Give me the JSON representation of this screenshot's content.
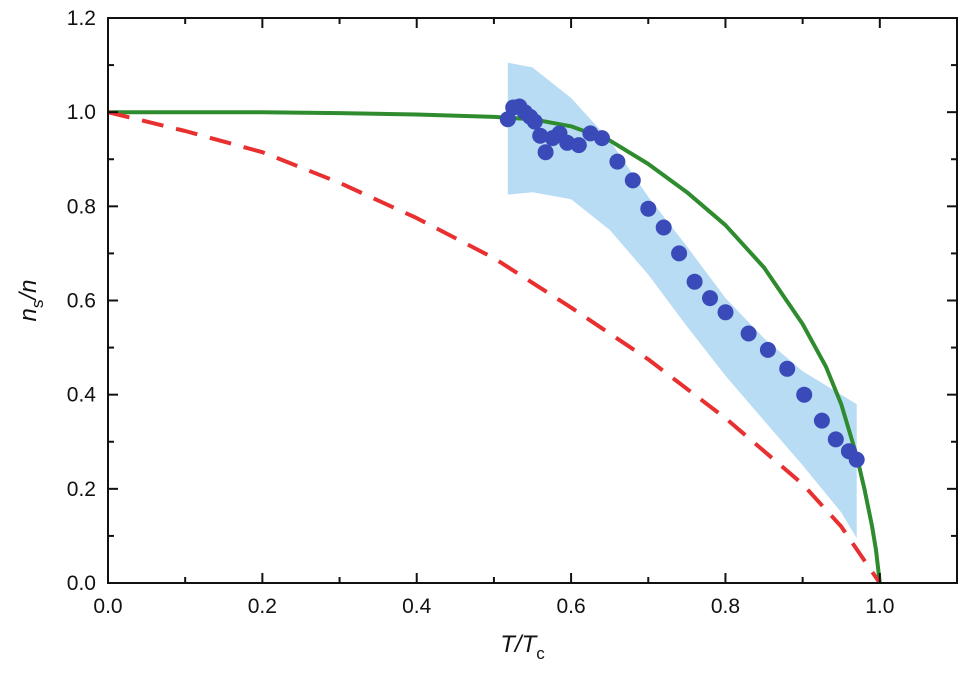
{
  "chart_data": {
    "type": "line",
    "xlabel": {
      "main": "T/T",
      "sub": "c"
    },
    "ylabel": {
      "pre": "n",
      "sub": "s",
      "post": "/n"
    },
    "xlim": [
      0.0,
      1.1
    ],
    "ylim": [
      0.0,
      1.2
    ],
    "xticks": [
      "0.0",
      "0.2",
      "0.4",
      "0.6",
      "0.8",
      "1.0"
    ],
    "yticks": [
      "0.0",
      "0.2",
      "0.4",
      "0.6",
      "0.8",
      "1.0",
      "1.2"
    ],
    "xtick_values": [
      0.0,
      0.2,
      0.4,
      0.6,
      0.8,
      1.0
    ],
    "ytick_values": [
      0.0,
      0.2,
      0.4,
      0.6,
      0.8,
      1.0,
      1.2
    ],
    "grid": false,
    "colors": {
      "points": "#3a4ab8",
      "band": "#b8dcf4",
      "solid_line": "#2e8b2e",
      "dashed_line": "#e83030"
    },
    "series": [
      {
        "style": "solid",
        "color": "#2e8b2e",
        "x": [
          0.0,
          0.1,
          0.2,
          0.3,
          0.4,
          0.5,
          0.55,
          0.6,
          0.65,
          0.7,
          0.75,
          0.8,
          0.85,
          0.9,
          0.93,
          0.95,
          0.97,
          0.98,
          0.99,
          0.995,
          1.0
        ],
        "y": [
          1.0,
          1.0,
          1.0,
          0.998,
          0.995,
          0.99,
          0.985,
          0.97,
          0.94,
          0.89,
          0.83,
          0.76,
          0.67,
          0.55,
          0.46,
          0.38,
          0.27,
          0.2,
          0.12,
          0.07,
          0.0
        ]
      },
      {
        "style": "dashed",
        "color": "#e83030",
        "x": [
          0.0,
          0.1,
          0.2,
          0.3,
          0.4,
          0.5,
          0.6,
          0.7,
          0.8,
          0.9,
          0.95,
          1.0
        ],
        "y": [
          1.0,
          0.96,
          0.915,
          0.85,
          0.775,
          0.69,
          0.585,
          0.475,
          0.35,
          0.21,
          0.12,
          0.0
        ]
      },
      {
        "style": "points",
        "color": "#3a4ab8",
        "x": [
          0.518,
          0.525,
          0.533,
          0.54,
          0.547,
          0.553,
          0.56,
          0.567,
          0.576,
          0.585,
          0.595,
          0.61,
          0.625,
          0.64,
          0.66,
          0.68,
          0.7,
          0.72,
          0.74,
          0.76,
          0.78,
          0.8,
          0.83,
          0.855,
          0.88,
          0.902,
          0.925,
          0.943,
          0.96,
          0.97
        ],
        "y": [
          0.985,
          1.01,
          1.012,
          1.0,
          0.99,
          0.98,
          0.95,
          0.915,
          0.945,
          0.955,
          0.935,
          0.93,
          0.955,
          0.945,
          0.895,
          0.855,
          0.795,
          0.755,
          0.7,
          0.64,
          0.605,
          0.575,
          0.53,
          0.495,
          0.455,
          0.4,
          0.345,
          0.305,
          0.28,
          0.262
        ]
      }
    ],
    "band": {
      "color": "#b8dcf4",
      "x": [
        0.518,
        0.55,
        0.6,
        0.65,
        0.7,
        0.75,
        0.8,
        0.85,
        0.9,
        0.95,
        0.97
      ],
      "upper": [
        1.105,
        1.095,
        1.03,
        0.94,
        0.82,
        0.715,
        0.605,
        0.52,
        0.45,
        0.4,
        0.38
      ],
      "lower": [
        0.825,
        0.83,
        0.815,
        0.75,
        0.655,
        0.545,
        0.44,
        0.345,
        0.25,
        0.15,
        0.095
      ]
    }
  }
}
